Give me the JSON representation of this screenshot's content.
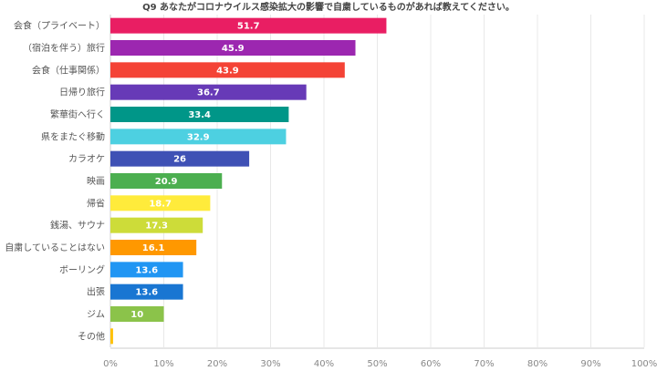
{
  "chart_data": {
    "type": "bar",
    "orientation": "horizontal",
    "title": "Q9 あなたがコロナウイルス感染拡大の影響で自粛しているものがあれば教えてください。",
    "categories": [
      "会食（プライベート）",
      "（宿泊を伴う）旅行",
      "会食（仕事関係）",
      "日帰り旅行",
      "繁華街へ行く",
      "県をまたぐ移動",
      "カラオケ",
      "映画",
      "帰省",
      "銭湯、サウナ",
      "自粛していることはない",
      "ボーリング",
      "出張",
      "ジム",
      "その他"
    ],
    "values": [
      51.7,
      45.9,
      43.9,
      36.7,
      33.4,
      32.9,
      26,
      20.9,
      18.7,
      17.3,
      16.1,
      13.6,
      13.6,
      10,
      0.5
    ],
    "value_labels": [
      "51.7",
      "45.9",
      "43.9",
      "36.7",
      "33.4",
      "32.9",
      "26",
      "20.9",
      "18.7",
      "17.3",
      "16.1",
      "13.6",
      "13.6",
      "10",
      ""
    ],
    "colors": [
      "#e91e63",
      "#9c27b0",
      "#f44336",
      "#673ab7",
      "#009688",
      "#4dd0e1",
      "#3f51b5",
      "#4caf50",
      "#ffeb3b",
      "#cddc39",
      "#ff9800",
      "#2196f3",
      "#1976d2",
      "#8bc34a",
      "#ffc107"
    ],
    "xlim": [
      0,
      100
    ],
    "xticks": [
      "0%",
      "10%",
      "20%",
      "30%",
      "40%",
      "50%",
      "60%",
      "70%",
      "80%",
      "90%",
      "100%"
    ],
    "grid": true,
    "xlabel": "",
    "ylabel": ""
  }
}
